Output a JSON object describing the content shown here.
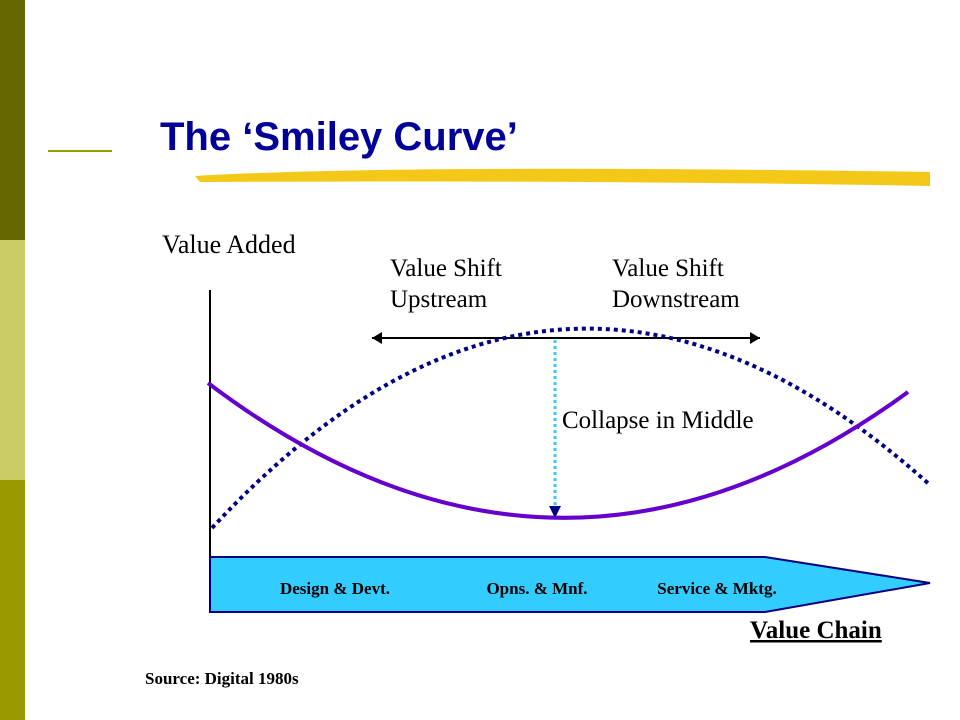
{
  "header": {
    "title": "The ‘Smiley Curve’"
  },
  "diagram": {
    "y_axis_label": "Value Added",
    "upstream": {
      "line1": "Value Shift",
      "line2": "Upstream"
    },
    "downstream": {
      "line1": "Value Shift",
      "line2": "Downstream"
    },
    "middle_label": "Collapse in Middle",
    "stages": [
      "Design & Devt.",
      "Opns. & Mnf.",
      "Service & Mktg."
    ],
    "x_axis_label": "Value Chain"
  },
  "source": "Source: Digital 1980s"
}
